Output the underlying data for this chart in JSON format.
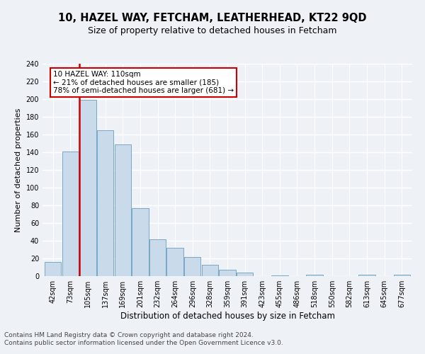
{
  "title1": "10, HAZEL WAY, FETCHAM, LEATHERHEAD, KT22 9QD",
  "title2": "Size of property relative to detached houses in Fetcham",
  "xlabel": "Distribution of detached houses by size in Fetcham",
  "ylabel": "Number of detached properties",
  "categories": [
    "42sqm",
    "73sqm",
    "105sqm",
    "137sqm",
    "169sqm",
    "201sqm",
    "232sqm",
    "264sqm",
    "296sqm",
    "328sqm",
    "359sqm",
    "391sqm",
    "423sqm",
    "455sqm",
    "486sqm",
    "518sqm",
    "550sqm",
    "582sqm",
    "613sqm",
    "645sqm",
    "677sqm"
  ],
  "values": [
    16,
    141,
    199,
    165,
    149,
    77,
    42,
    32,
    22,
    13,
    7,
    4,
    0,
    1,
    0,
    2,
    0,
    0,
    2,
    0,
    2
  ],
  "bar_color": "#c9daea",
  "bar_edge_color": "#6a9dbf",
  "highlight_bar_index": 2,
  "highlight_line_color": "#cc0000",
  "annotation_text": "10 HAZEL WAY: 110sqm\n← 21% of detached houses are smaller (185)\n78% of semi-detached houses are larger (681) →",
  "annotation_box_color": "white",
  "annotation_box_edge_color": "#cc0000",
  "ylim": [
    0,
    240
  ],
  "yticks": [
    0,
    20,
    40,
    60,
    80,
    100,
    120,
    140,
    160,
    180,
    200,
    220,
    240
  ],
  "footer1": "Contains HM Land Registry data © Crown copyright and database right 2024.",
  "footer2": "Contains public sector information licensed under the Open Government Licence v3.0.",
  "background_color": "#eef2f7",
  "grid_color": "#ffffff",
  "title1_fontsize": 10.5,
  "title2_fontsize": 9,
  "xlabel_fontsize": 8.5,
  "ylabel_fontsize": 8,
  "tick_fontsize": 7,
  "annotation_fontsize": 7.5,
  "footer_fontsize": 6.5
}
